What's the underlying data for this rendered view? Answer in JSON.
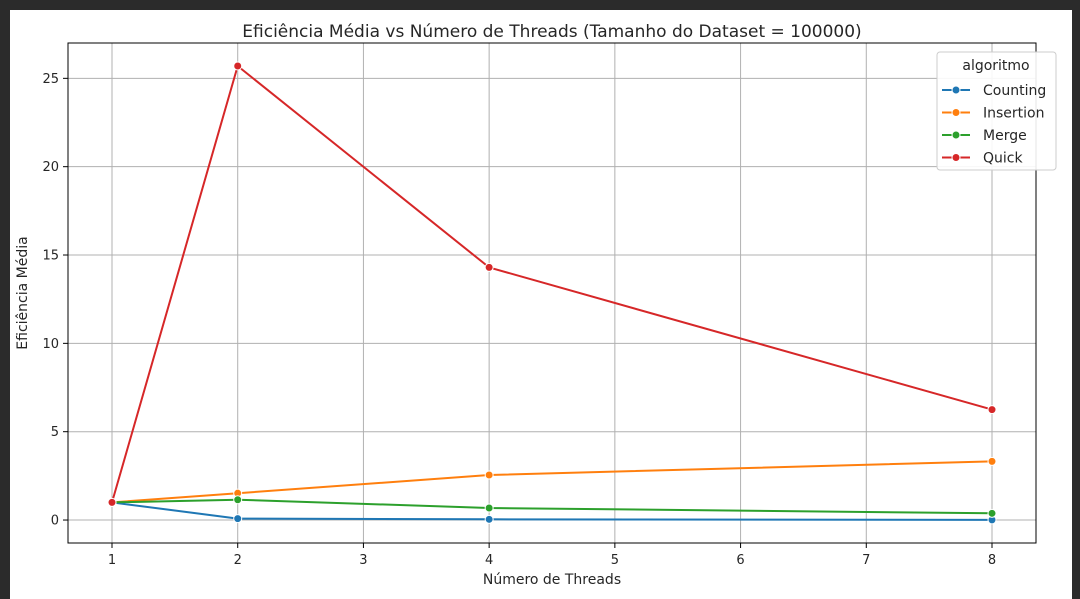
{
  "chart_data": {
    "type": "line",
    "title": "Eficiência Média vs Número de Threads (Tamanho do Dataset = 100000)",
    "xlabel": "Número de Threads",
    "ylabel": "Eficiência Média",
    "xlim": [
      0.65,
      8.35
    ],
    "ylim": [
      -1.3,
      27.0
    ],
    "xticks": [
      1,
      2,
      3,
      4,
      5,
      6,
      7,
      8
    ],
    "yticks": [
      0,
      5,
      10,
      15,
      20,
      25
    ],
    "grid": true,
    "legend": {
      "title": "algoritmo",
      "placement": "top-right"
    },
    "series": [
      {
        "name": "Counting",
        "color": "#1f77b4",
        "x": [
          1,
          2,
          4,
          8
        ],
        "values": [
          1.0,
          0.08,
          0.04,
          0.01
        ]
      },
      {
        "name": "Insertion",
        "color": "#ff7f0e",
        "x": [
          1,
          2,
          4,
          8
        ],
        "values": [
          1.0,
          1.52,
          2.55,
          3.32
        ]
      },
      {
        "name": "Merge",
        "color": "#2ca02c",
        "x": [
          1,
          2,
          4,
          8
        ],
        "values": [
          1.0,
          1.15,
          0.68,
          0.38
        ]
      },
      {
        "name": "Quick",
        "color": "#d62728",
        "x": [
          1,
          2,
          4,
          8
        ],
        "values": [
          1.0,
          25.7,
          14.3,
          6.25
        ]
      }
    ]
  }
}
